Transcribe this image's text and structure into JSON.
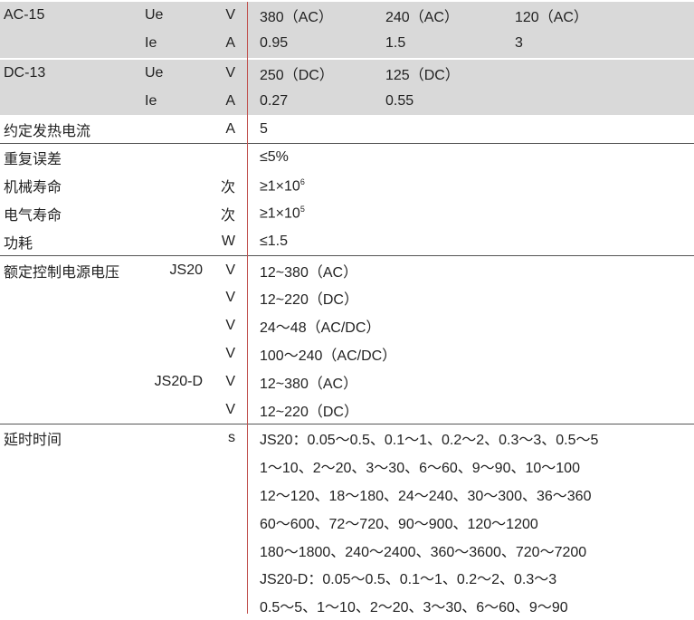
{
  "ac15": {
    "label": "AC-15",
    "rows": [
      {
        "sym": "Ue",
        "unit": "V",
        "values": [
          "380（AC）",
          "240（AC）",
          "120（AC）"
        ]
      },
      {
        "sym": "Ie",
        "unit": "A",
        "values": [
          "0.95",
          "1.5",
          "3"
        ]
      }
    ]
  },
  "dc13": {
    "label": "DC-13",
    "rows": [
      {
        "sym": "Ue",
        "unit": "V",
        "values": [
          "250（DC）",
          "125（DC）"
        ]
      },
      {
        "sym": "Ie",
        "unit": "A",
        "values": [
          "0.27",
          "0.55"
        ]
      }
    ]
  },
  "thermal": {
    "label": "约定发热电流",
    "unit": "A",
    "value": "5"
  },
  "misc": [
    {
      "label": "重复误差",
      "unit": "",
      "value": "≤5%"
    },
    {
      "label": "机械寿命",
      "unit": "次",
      "value": "≥1×10",
      "exp": "6"
    },
    {
      "label": "电气寿命",
      "unit": "次",
      "value": "≥1×10",
      "exp": "5"
    },
    {
      "label": "功耗",
      "unit": "W",
      "value": "≤1.5"
    }
  ],
  "control": {
    "label": "额定控制电源电压",
    "rows": [
      {
        "model": "JS20",
        "unit": "V",
        "value": "12~380（AC）"
      },
      {
        "model": "",
        "unit": "V",
        "value": "12~220（DC）"
      },
      {
        "model": "",
        "unit": "V",
        "value": "24～48（AC/DC）"
      },
      {
        "model": "",
        "unit": "V",
        "value": "100～240（AC/DC）"
      },
      {
        "model": "JS20-D",
        "unit": "V",
        "value": "12~380（AC）"
      },
      {
        "model": "",
        "unit": "V",
        "value": "12~220（DC）"
      }
    ]
  },
  "delay": {
    "label": "延时时间",
    "unit": "s",
    "lines": [
      "JS20：0.05～0.5、0.1～1、0.2～2、0.3～3、0.5～5",
      "1～10、2～20、3～30、6～60、9～90、10～100",
      "12～120、18～180、24～240、30～300、36～360",
      "60～600、72～720、90～900、120～1200",
      "180～1800、240～2400、360～3600、720～7200",
      "JS20-D：0.05～0.5、0.1～1、0.2～2、0.3～3",
      "0.5～5、1～10、2～20、3～30、6～60、9～90"
    ]
  }
}
